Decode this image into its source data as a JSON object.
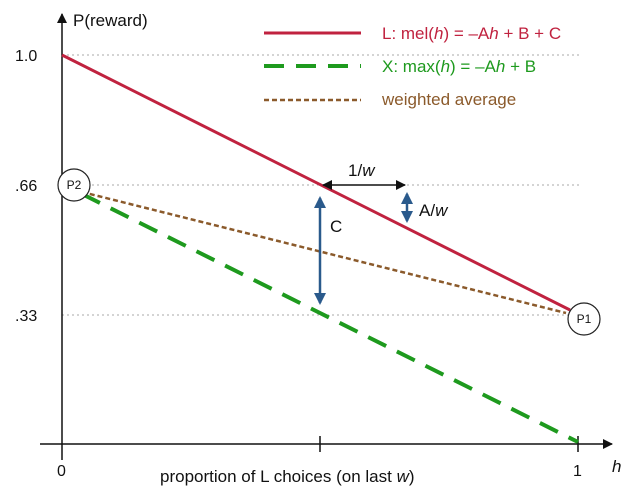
{
  "axes": {
    "y_title": "P(reward)",
    "x_title_prefix": "proportion of L choices (on last ",
    "x_title_var": "w",
    "x_title_suffix": ")",
    "x_var": "h",
    "x_ticks": [
      "0",
      "1"
    ],
    "y_ticks": [
      "1.0",
      ".66",
      ".33"
    ]
  },
  "legend": {
    "L": {
      "pre": "L: mel(",
      "var": "h",
      "mid": ") = –A",
      "var2": "h",
      "post": " + B + C",
      "color": "#c0223f"
    },
    "X": {
      "pre": "X: max(",
      "var": "h",
      "mid": ") = –A",
      "var2": "h",
      "post": " + B",
      "color": "#1e9a1e"
    },
    "W": {
      "text": "weighted average",
      "color": "#8b5a2b"
    }
  },
  "annotations": {
    "one_over_w_pre": "1/",
    "one_over_w_var": "w",
    "a_over_w_pre": "A/",
    "a_over_w_var": "w",
    "c": "C",
    "p1": "P1",
    "p2": "P2"
  },
  "colors": {
    "red_line": "#c0223f",
    "green_dash": "#1e9a1e",
    "brown_dot": "#8b5a2b",
    "blue_arrow": "#2a5a8c"
  }
}
